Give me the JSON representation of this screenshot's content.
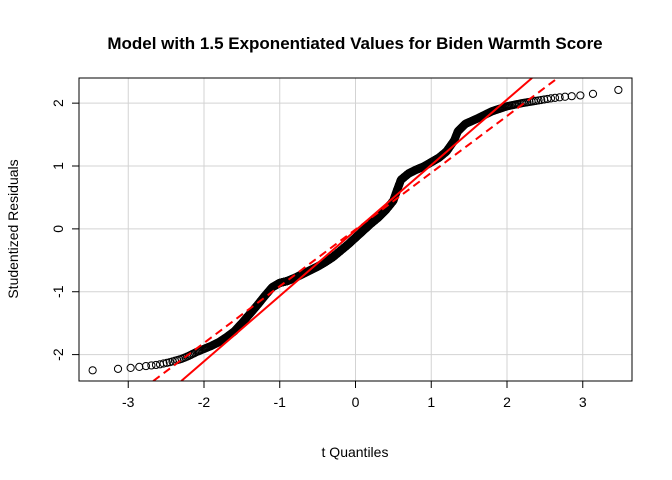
{
  "chart_data": {
    "type": "scatter",
    "title": "Model with 1.5 Exponentiated Values for Biden Warmth Score",
    "xlabel": "t Quantiles",
    "ylabel": "Studentized Residuals",
    "xlim": [
      -3.65,
      3.65
    ],
    "ylim": [
      -2.42,
      2.4
    ],
    "xticks": [
      -3,
      -2,
      -1,
      0,
      1,
      2,
      3
    ],
    "xtick_labels": [
      "-3",
      "-2",
      "-1",
      "0",
      "1",
      "2",
      "3"
    ],
    "yticks": [
      -2,
      -1,
      0,
      1,
      2
    ],
    "ytick_labels": [
      "-2",
      "-1",
      "0",
      "1",
      "2"
    ],
    "grid": true,
    "point_color": "#000000",
    "line_color": "#ff0000",
    "qq_curve": [
      [
        -3.47,
        -2.25
      ],
      [
        -3.17,
        -2.23
      ],
      [
        -2.95,
        -2.21
      ],
      [
        -2.75,
        -2.18
      ],
      [
        -2.6,
        -2.16
      ],
      [
        -2.45,
        -2.12
      ],
      [
        -2.3,
        -2.07
      ],
      [
        -2.2,
        -2.02
      ],
      [
        -2.1,
        -1.96
      ],
      [
        -2.0,
        -1.91
      ],
      [
        -1.9,
        -1.86
      ],
      [
        -1.8,
        -1.8
      ],
      [
        -1.7,
        -1.72
      ],
      [
        -1.6,
        -1.63
      ],
      [
        -1.5,
        -1.5
      ],
      [
        -1.4,
        -1.36
      ],
      [
        -1.3,
        -1.22
      ],
      [
        -1.2,
        -1.07
      ],
      [
        -1.1,
        -0.93
      ],
      [
        -1.0,
        -0.86
      ],
      [
        -0.9,
        -0.83
      ],
      [
        -0.8,
        -0.78
      ],
      [
        -0.7,
        -0.72
      ],
      [
        -0.6,
        -0.66
      ],
      [
        -0.5,
        -0.6
      ],
      [
        -0.4,
        -0.53
      ],
      [
        -0.3,
        -0.45
      ],
      [
        -0.2,
        -0.35
      ],
      [
        -0.1,
        -0.25
      ],
      [
        0.0,
        -0.14
      ],
      [
        0.1,
        -0.03
      ],
      [
        0.2,
        0.08
      ],
      [
        0.3,
        0.18
      ],
      [
        0.4,
        0.3
      ],
      [
        0.5,
        0.45
      ],
      [
        0.55,
        0.62
      ],
      [
        0.6,
        0.78
      ],
      [
        0.7,
        0.88
      ],
      [
        0.8,
        0.94
      ],
      [
        0.9,
        0.99
      ],
      [
        1.0,
        1.06
      ],
      [
        1.1,
        1.13
      ],
      [
        1.2,
        1.23
      ],
      [
        1.3,
        1.4
      ],
      [
        1.35,
        1.55
      ],
      [
        1.45,
        1.67
      ],
      [
        1.6,
        1.75
      ],
      [
        1.8,
        1.87
      ],
      [
        2.0,
        1.95
      ],
      [
        2.2,
        2.0
      ],
      [
        2.4,
        2.04
      ],
      [
        2.6,
        2.08
      ],
      [
        2.75,
        2.1
      ],
      [
        2.85,
        2.11
      ],
      [
        2.95,
        2.12
      ],
      [
        3.15,
        2.15
      ],
      [
        3.47,
        2.21
      ]
    ],
    "reference_lines": [
      {
        "style": "solid",
        "x": [
          -2.3,
          2.33
        ],
        "y": [
          -2.42,
          2.4
        ]
      },
      {
        "style": "dashed",
        "x": [
          -2.67,
          2.67
        ],
        "y": [
          -2.42,
          2.4
        ]
      }
    ]
  }
}
